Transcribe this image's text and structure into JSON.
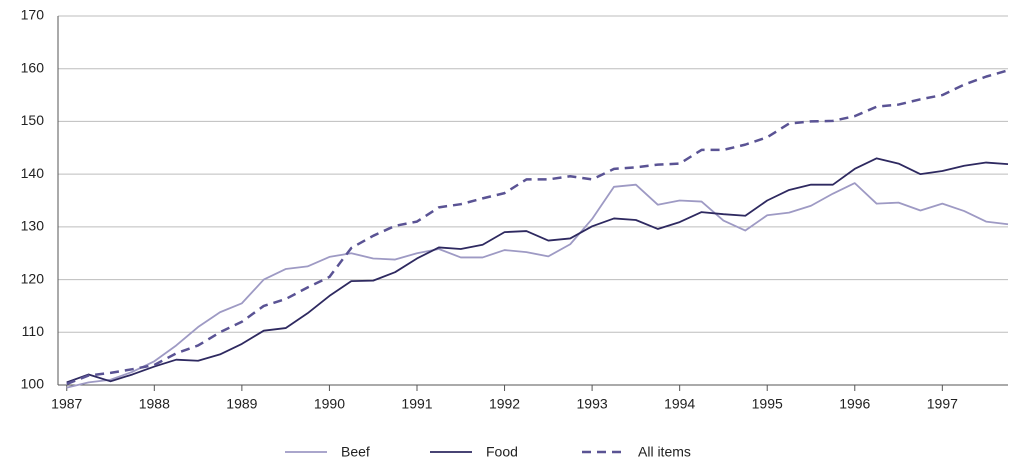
{
  "chart_data": {
    "type": "line",
    "x": [
      1987,
      1987.25,
      1987.5,
      1987.75,
      1988,
      1988.25,
      1988.5,
      1988.75,
      1989,
      1989.25,
      1989.5,
      1989.75,
      1990,
      1990.25,
      1990.5,
      1990.75,
      1991,
      1991.25,
      1991.5,
      1991.75,
      1992,
      1992.25,
      1992.5,
      1992.75,
      1993,
      1993.25,
      1993.5,
      1993.75,
      1994,
      1994.25,
      1994.5,
      1994.75,
      1995,
      1995.25,
      1995.5,
      1995.75,
      1996,
      1996.25,
      1996.5,
      1996.75,
      1997,
      1997.25,
      1997.5,
      1997.75
    ],
    "series": [
      {
        "name": "Beef",
        "color": "#9e9ac4",
        "dashed": false,
        "values": [
          99.5,
          100.5,
          101,
          102.5,
          104.5,
          107.5,
          111,
          113.8,
          115.5,
          120,
          122,
          122.5,
          124.3,
          125,
          124,
          123.8,
          125,
          125.8,
          124.2,
          124.2,
          125.6,
          125.2,
          124.4,
          126.7,
          131.5,
          137.6,
          138,
          134.2,
          135,
          134.8,
          131.2,
          129.3,
          132.2,
          132.7,
          134,
          136.3,
          138.3,
          134.4,
          134.6,
          133.1,
          134.4,
          133,
          131,
          130.5
        ]
      },
      {
        "name": "Food",
        "color": "#2e2960",
        "dashed": false,
        "values": [
          100.5,
          102,
          100.7,
          102,
          103.5,
          104.8,
          104.6,
          105.8,
          107.8,
          110.3,
          110.8,
          113.6,
          116.9,
          119.7,
          119.8,
          121.4,
          124,
          126.1,
          125.8,
          126.6,
          129,
          129.2,
          127.4,
          127.8,
          130.1,
          131.6,
          131.3,
          129.6,
          130.9,
          132.8,
          132.4,
          132.1,
          135,
          137,
          138,
          138,
          141,
          143,
          142,
          140,
          140.6,
          141.6,
          142.2,
          141.9
        ]
      },
      {
        "name": "All items",
        "color": "#5a5394",
        "dashed": true,
        "values": [
          100.2,
          101.8,
          102.3,
          103,
          103.8,
          106,
          107.5,
          110,
          112,
          115,
          116.3,
          118.5,
          120.5,
          126,
          128.3,
          130.2,
          131,
          133.7,
          134.3,
          135.4,
          136.4,
          139,
          139,
          139.6,
          139,
          141,
          141.3,
          141.8,
          142,
          144.6,
          144.6,
          145.6,
          147,
          149.6,
          150,
          150.1,
          151,
          152.8,
          153.2,
          154.2,
          155,
          157,
          158.5,
          159.7
        ]
      }
    ],
    "xlim": [
      1986.9,
      1997.75
    ],
    "xticks": [
      1987,
      1988,
      1989,
      1990,
      1991,
      1992,
      1993,
      1994,
      1995,
      1996,
      1997
    ],
    "ylim": [
      100,
      170
    ],
    "yticks": [
      100,
      110,
      120,
      130,
      140,
      150,
      160,
      170
    ],
    "grid": true,
    "legend": "bottom"
  }
}
